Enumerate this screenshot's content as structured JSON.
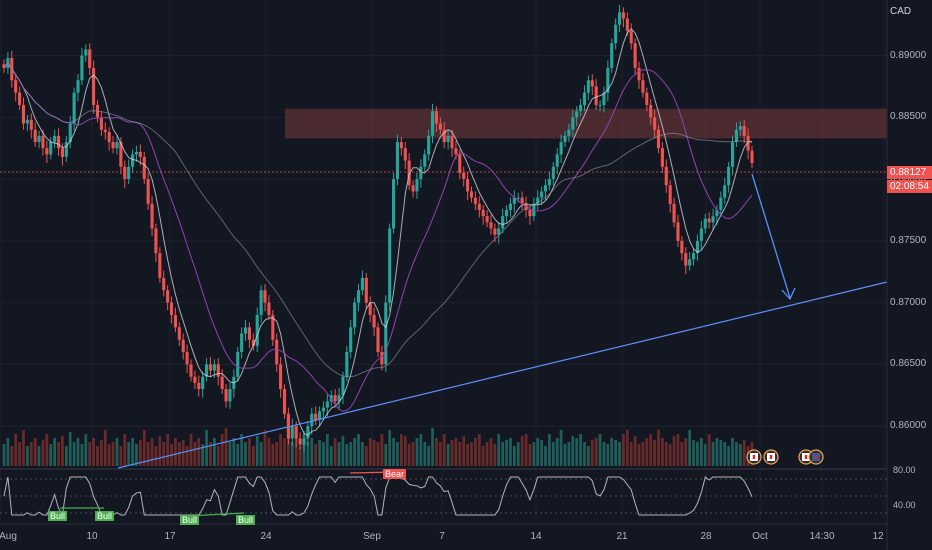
{
  "currency": "CAD",
  "price_axis": {
    "labels": [
      "0.89000",
      "0.88500",
      "0.88000",
      "0.87500",
      "0.87000",
      "0.86500",
      "0.86000"
    ],
    "values": [
      0.89,
      0.885,
      0.88,
      0.875,
      0.87,
      0.865,
      0.86
    ]
  },
  "current_price": {
    "value": "0.88127",
    "countdown": "02:08:54",
    "color": "#f23645"
  },
  "osc_axis": {
    "labels": [
      "80.00",
      "40.00"
    ],
    "values": [
      80,
      40
    ]
  },
  "time_axis": [
    "Aug",
    "10",
    "17",
    "24",
    "Sep",
    "7",
    "14",
    "21",
    "28",
    "Oct",
    "14:30",
    "12"
  ],
  "badges": {
    "bull": "Bull",
    "bear": "Bear"
  },
  "colors": {
    "up": "#26a69a",
    "down": "#ef5350",
    "bg": "#131722",
    "ma_fast": "#d1d4dc",
    "ma_slow": "#9c27b0",
    "trend": "#5b8ff9",
    "zone": "#7a3b3b"
  },
  "chart_data": {
    "type": "candlestick",
    "y_range": [
      0.8575,
      0.8945
    ],
    "zone": [
      0.8833,
      0.8857
    ],
    "closes": [
      0.889,
      0.8898,
      0.888,
      0.887,
      0.886,
      0.8845,
      0.8848,
      0.884,
      0.883,
      0.8835,
      0.8825,
      0.882,
      0.883,
      0.8835,
      0.8825,
      0.8818,
      0.883,
      0.8845,
      0.887,
      0.888,
      0.89,
      0.8905,
      0.889,
      0.886,
      0.885,
      0.884,
      0.8838,
      0.883,
      0.8825,
      0.883,
      0.881,
      0.88,
      0.881,
      0.882,
      0.8822,
      0.8818,
      0.88,
      0.878,
      0.876,
      0.874,
      0.872,
      0.871,
      0.87,
      0.869,
      0.868,
      0.867,
      0.866,
      0.865,
      0.864,
      0.8635,
      0.863,
      0.864,
      0.865,
      0.8645,
      0.865,
      0.864,
      0.863,
      0.862,
      0.863,
      0.864,
      0.866,
      0.8675,
      0.868,
      0.867,
      0.8665,
      0.869,
      0.871,
      0.87,
      0.869,
      0.867,
      0.865,
      0.863,
      0.861,
      0.859,
      0.86,
      0.859,
      0.8585,
      0.859,
      0.86,
      0.861,
      0.8605,
      0.8612,
      0.8615,
      0.862,
      0.8625,
      0.862,
      0.8625,
      0.864,
      0.866,
      0.868,
      0.87,
      0.871,
      0.872,
      0.87,
      0.869,
      0.868,
      0.866,
      0.865,
      0.87,
      0.876,
      0.88,
      0.883,
      0.8825,
      0.8815,
      0.8795,
      0.879,
      0.88,
      0.881,
      0.882,
      0.8835,
      0.8855,
      0.8845,
      0.884,
      0.883,
      0.8835,
      0.8825,
      0.882,
      0.8805,
      0.88,
      0.879,
      0.8785,
      0.878,
      0.8775,
      0.877,
      0.8765,
      0.876,
      0.8755,
      0.876,
      0.877,
      0.8775,
      0.878,
      0.8785,
      0.8785,
      0.878,
      0.8775,
      0.877,
      0.878,
      0.8785,
      0.879,
      0.8795,
      0.88,
      0.881,
      0.882,
      0.883,
      0.8835,
      0.884,
      0.885,
      0.8855,
      0.886,
      0.887,
      0.888,
      0.8875,
      0.886,
      0.886,
      0.887,
      0.889,
      0.891,
      0.8925,
      0.8935,
      0.893,
      0.892,
      0.891,
      0.889,
      0.888,
      0.887,
      0.886,
      0.885,
      0.884,
      0.8825,
      0.881,
      0.8795,
      0.878,
      0.8765,
      0.875,
      0.874,
      0.873,
      0.8735,
      0.874,
      0.875,
      0.876,
      0.8768,
      0.8765,
      0.877,
      0.8775,
      0.8785,
      0.8795,
      0.881,
      0.883,
      0.884,
      0.8843,
      0.8835,
      0.8823,
      0.8813
    ],
    "volumes": [
      0.55,
      0.7,
      0.5,
      0.8,
      0.6,
      0.9,
      0.5,
      0.6,
      0.7,
      0.5,
      0.65,
      0.8,
      0.55,
      0.7,
      0.6,
      0.75,
      0.5,
      0.85,
      0.6,
      0.7,
      0.55,
      0.8,
      0.6,
      0.7,
      0.5,
      0.65,
      0.9,
      0.55,
      0.6,
      0.7,
      0.5,
      0.8,
      0.6,
      0.7,
      0.55,
      0.65,
      0.9,
      0.6,
      0.7,
      0.5,
      0.75,
      0.6,
      0.8,
      0.55,
      0.7,
      0.6,
      0.65,
      0.5,
      0.8,
      0.6,
      0.7,
      0.55,
      0.9,
      0.6,
      0.7,
      0.5,
      0.8,
      0.95,
      0.6,
      0.7,
      0.55,
      0.8,
      0.6,
      0.7,
      0.5,
      0.75,
      0.6,
      0.9,
      0.7,
      0.55,
      0.6,
      0.8,
      0.7,
      1.0,
      0.6,
      0.7,
      0.5,
      0.8,
      0.6,
      0.7,
      0.55,
      0.65,
      0.6,
      0.8,
      0.5,
      0.7,
      0.6,
      0.75,
      0.55,
      0.6,
      0.7,
      0.8,
      0.6,
      0.5,
      0.7,
      0.65,
      0.6,
      0.8,
      0.55,
      0.9,
      0.7,
      0.6,
      0.8,
      0.75,
      0.55,
      0.6,
      0.7,
      0.8,
      0.6,
      0.5,
      0.95,
      0.7,
      0.6,
      0.8,
      0.55,
      0.65,
      0.7,
      0.6,
      0.75,
      0.55,
      0.6,
      0.7,
      0.8,
      0.5,
      0.6,
      0.7,
      0.55,
      0.8,
      0.6,
      0.65,
      0.7,
      0.5,
      0.6,
      0.75,
      0.8,
      0.55,
      0.6,
      0.7,
      0.65,
      0.5,
      0.8,
      0.6,
      0.7,
      0.9,
      0.55,
      0.6,
      0.75,
      0.7,
      0.8,
      0.6,
      0.5,
      0.65,
      0.7,
      0.8,
      0.6,
      0.55,
      0.7,
      0.65,
      0.6,
      0.8,
      0.9,
      0.6,
      0.75,
      0.55,
      0.6,
      0.7,
      0.8,
      0.65,
      0.9,
      0.7,
      0.6,
      0.55,
      0.75,
      0.8,
      0.6,
      0.7,
      0.9,
      0.65,
      0.6,
      0.7,
      0.55,
      0.8,
      0.6,
      0.7,
      0.65,
      0.6,
      0.5,
      0.7,
      0.6,
      0.55,
      0.65,
      0.5,
      0.6
    ]
  }
}
